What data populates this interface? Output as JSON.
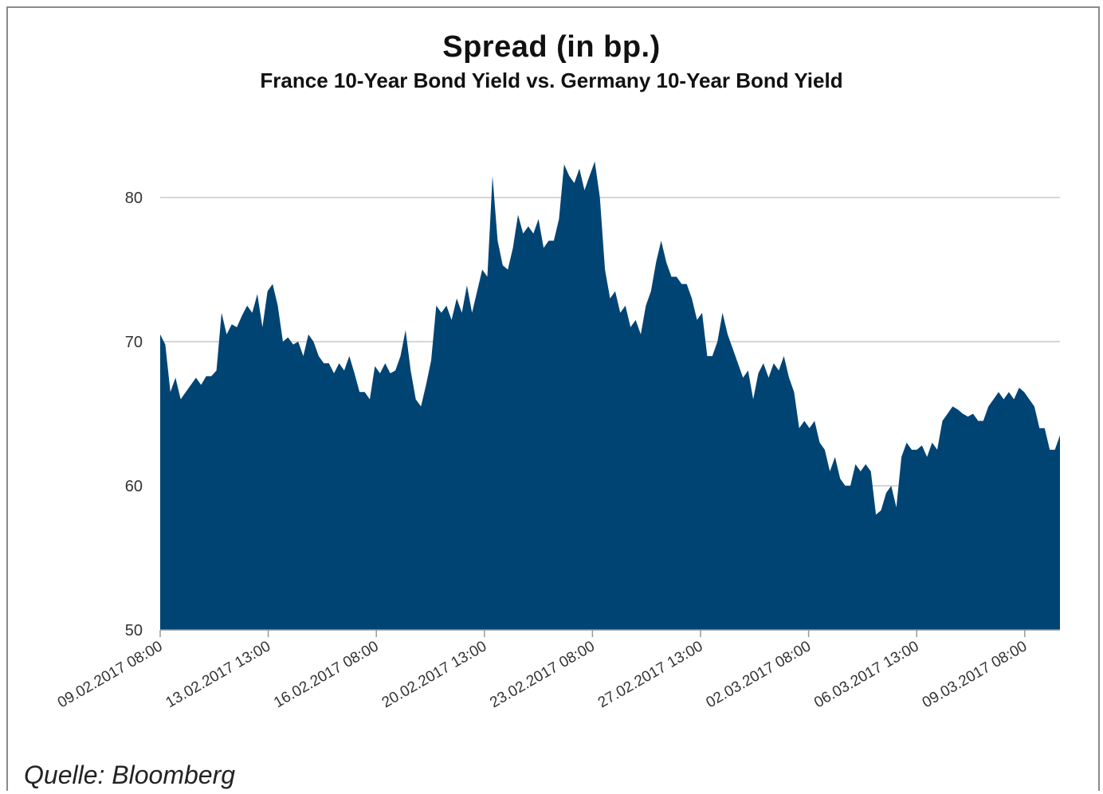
{
  "title": "Spread (in bp.)",
  "subtitle": "France 10-Year Bond Yield vs. Germany 10-Year Bond Yield",
  "source": "Quelle: Bloomberg",
  "colors": {
    "area": "#004474",
    "grid": "#c8c8c8",
    "axis": "#999999"
  },
  "chart_data": {
    "type": "area",
    "title": "Spread (in bp.)",
    "subtitle": "France 10-Year Bond Yield vs. Germany 10-Year Bond Yield",
    "xlabel": "",
    "ylabel": "",
    "ylim": [
      50,
      82.5
    ],
    "yticks": [
      50,
      60,
      70,
      80
    ],
    "grid": true,
    "xticks": [
      "09.02.2017 08:00",
      "13.02.2017 13:00",
      "16.02.2017 08:00",
      "20.02.2017 13:00",
      "23.02.2017 08:00",
      "27.02.2017 13:00",
      "02.03.2017 08:00",
      "06.03.2017 13:00",
      "09.03.2017 08:00"
    ],
    "series": [
      {
        "values": [
          70.5,
          69.8,
          66.5,
          67.5,
          66.0,
          66.5,
          67.0,
          67.5,
          67.0,
          67.6,
          67.6,
          68.0,
          72.0,
          70.5,
          71.2,
          71.0,
          71.8,
          72.5,
          72.0,
          73.3,
          71.0,
          73.5,
          74.0,
          72.5,
          70.0,
          70.3,
          69.8,
          70.0,
          69.0,
          70.5,
          70.0,
          69.0,
          68.5,
          68.5,
          67.8,
          68.5,
          68.0,
          69.0,
          67.8,
          66.5,
          66.5,
          66.0,
          68.3,
          67.8,
          68.5,
          67.8,
          68.0,
          69.0,
          70.8,
          68.0,
          66.0,
          65.5,
          67.0,
          68.7,
          72.5,
          72.0,
          72.5,
          71.5,
          73.0,
          72.0,
          73.9,
          72.0,
          73.5,
          75.0,
          74.5,
          81.5,
          77.0,
          75.3,
          75.0,
          76.5,
          78.8,
          77.5,
          78.0,
          77.5,
          78.5,
          76.5,
          77.0,
          77.0,
          78.5,
          82.3,
          81.5,
          81.0,
          82.0,
          80.5,
          81.5,
          82.5,
          80.0,
          75.0,
          73.0,
          73.5,
          72.0,
          72.5,
          71.0,
          71.5,
          70.5,
          72.5,
          73.5,
          75.5,
          77.0,
          75.5,
          74.5,
          74.5,
          74.0,
          74.0,
          73.0,
          71.5,
          72.0,
          69.0,
          69.0,
          70.0,
          72.0,
          70.5,
          69.5,
          68.5,
          67.5,
          68.0,
          66.0,
          67.8,
          68.5,
          67.5,
          68.5,
          68.0,
          69.0,
          67.5,
          66.5,
          64.0,
          64.5,
          64.0,
          64.5,
          63.0,
          62.5,
          61.0,
          62.0,
          60.5,
          60.0,
          60.0,
          61.5,
          61.0,
          61.5,
          61.0,
          58.0,
          58.3,
          59.5,
          60.0,
          58.5,
          62.0,
          63.0,
          62.5,
          62.5,
          62.8,
          62.0,
          63.0,
          62.5,
          64.5,
          65.0,
          65.5,
          65.3,
          65.0,
          64.8,
          65.0,
          64.5,
          64.5,
          65.5,
          66.0,
          66.5,
          66.0,
          66.5,
          66.0,
          66.8,
          66.5,
          66.0,
          65.5,
          64.0,
          64.0,
          62.5,
          62.5,
          63.5
        ]
      }
    ]
  }
}
